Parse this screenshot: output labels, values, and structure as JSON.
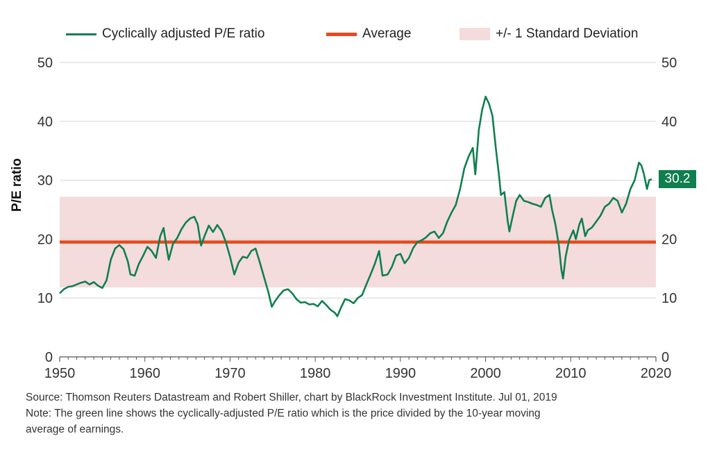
{
  "colors": {
    "cape_line": "#0f7f4f",
    "average": "#e8481c",
    "band": "#f4dcdc",
    "badge": "#0f7f4f",
    "gridline": "#d6d6d6",
    "axis": "#555555"
  },
  "legend": {
    "cape_label": "Cyclically adjusted P/E ratio",
    "average_label": "Average",
    "band_label": "+/- 1 Standard Deviation"
  },
  "ylabel": "P/E ratio",
  "badge_value": "30.2",
  "source_note": "Source: Thomson Reuters Datastream and Robert Shiller, chart by BlackRock Investment Institute. Jul 01, 2019",
  "note_line1": "Note: The green line shows the cyclically-adjusted P/E ratio which is the price divided by the 10-year moving",
  "note_line2": "average of earnings.",
  "chart_data": {
    "type": "line",
    "xlim": [
      1950,
      2020
    ],
    "ylim": [
      0,
      50
    ],
    "x_ticks": [
      "1950",
      "1960",
      "1970",
      "1980",
      "1990",
      "2000",
      "2010",
      "2020"
    ],
    "y_ticks_left": [
      "0",
      "10",
      "20",
      "30",
      "40",
      "50"
    ],
    "y_ticks_right": [
      "0",
      "10",
      "20",
      "30",
      "40",
      "50"
    ],
    "grid": true,
    "legend_position": "top",
    "average": 19.5,
    "std_band": [
      11.8,
      27.2
    ],
    "last_value": 30.2,
    "series": [
      {
        "name": "Cyclically adjusted P/E ratio",
        "points": [
          [
            1950.0,
            10.8
          ],
          [
            1950.5,
            11.5
          ],
          [
            1951.0,
            11.9
          ],
          [
            1951.5,
            12.0
          ],
          [
            1952.0,
            12.3
          ],
          [
            1952.5,
            12.6
          ],
          [
            1953.0,
            12.8
          ],
          [
            1953.5,
            12.3
          ],
          [
            1954.0,
            12.7
          ],
          [
            1954.5,
            12.1
          ],
          [
            1955.0,
            11.7
          ],
          [
            1955.5,
            13.0
          ],
          [
            1956.0,
            16.5
          ],
          [
            1956.5,
            18.4
          ],
          [
            1957.0,
            19.0
          ],
          [
            1957.5,
            18.3
          ],
          [
            1958.0,
            16.2
          ],
          [
            1958.3,
            14.0
          ],
          [
            1958.8,
            13.8
          ],
          [
            1959.3,
            15.8
          ],
          [
            1959.8,
            17.2
          ],
          [
            1960.3,
            18.7
          ],
          [
            1960.8,
            18.0
          ],
          [
            1961.3,
            16.8
          ],
          [
            1961.8,
            20.5
          ],
          [
            1962.2,
            21.9
          ],
          [
            1962.5,
            19.0
          ],
          [
            1962.8,
            16.5
          ],
          [
            1963.3,
            19.2
          ],
          [
            1963.8,
            20.2
          ],
          [
            1964.3,
            21.7
          ],
          [
            1964.8,
            22.8
          ],
          [
            1965.3,
            23.5
          ],
          [
            1965.8,
            23.8
          ],
          [
            1966.2,
            22.5
          ],
          [
            1966.6,
            18.9
          ],
          [
            1967.0,
            20.5
          ],
          [
            1967.5,
            22.3
          ],
          [
            1968.0,
            21.2
          ],
          [
            1968.5,
            22.4
          ],
          [
            1969.0,
            21.4
          ],
          [
            1969.5,
            19.5
          ],
          [
            1970.0,
            17.0
          ],
          [
            1970.5,
            14.0
          ],
          [
            1971.0,
            16.0
          ],
          [
            1971.5,
            17.0
          ],
          [
            1972.0,
            16.8
          ],
          [
            1972.5,
            18.0
          ],
          [
            1973.0,
            18.4
          ],
          [
            1973.5,
            16.0
          ],
          [
            1974.0,
            13.5
          ],
          [
            1974.5,
            11.0
          ],
          [
            1974.9,
            8.5
          ],
          [
            1975.3,
            9.5
          ],
          [
            1975.8,
            10.5
          ],
          [
            1976.3,
            11.3
          ],
          [
            1976.8,
            11.5
          ],
          [
            1977.3,
            10.8
          ],
          [
            1977.8,
            9.8
          ],
          [
            1978.3,
            9.2
          ],
          [
            1978.8,
            9.3
          ],
          [
            1979.3,
            8.9
          ],
          [
            1979.8,
            9.0
          ],
          [
            1980.3,
            8.6
          ],
          [
            1980.8,
            9.5
          ],
          [
            1981.3,
            8.8
          ],
          [
            1981.8,
            8.0
          ],
          [
            1982.3,
            7.5
          ],
          [
            1982.6,
            6.9
          ],
          [
            1983.0,
            8.3
          ],
          [
            1983.5,
            9.8
          ],
          [
            1984.0,
            9.6
          ],
          [
            1984.5,
            9.1
          ],
          [
            1985.0,
            10.0
          ],
          [
            1985.5,
            10.5
          ],
          [
            1986.0,
            12.3
          ],
          [
            1986.5,
            14.0
          ],
          [
            1987.0,
            15.8
          ],
          [
            1987.5,
            18.0
          ],
          [
            1987.9,
            13.8
          ],
          [
            1988.5,
            14.0
          ],
          [
            1989.0,
            15.3
          ],
          [
            1989.5,
            17.2
          ],
          [
            1990.0,
            17.5
          ],
          [
            1990.5,
            15.9
          ],
          [
            1991.0,
            16.8
          ],
          [
            1991.5,
            18.5
          ],
          [
            1992.0,
            19.5
          ],
          [
            1992.5,
            19.8
          ],
          [
            1993.0,
            20.3
          ],
          [
            1993.5,
            21.0
          ],
          [
            1994.0,
            21.3
          ],
          [
            1994.5,
            20.2
          ],
          [
            1995.0,
            21.0
          ],
          [
            1995.5,
            23.0
          ],
          [
            1996.0,
            24.5
          ],
          [
            1996.5,
            25.8
          ],
          [
            1997.0,
            28.5
          ],
          [
            1997.5,
            32.0
          ],
          [
            1998.0,
            34.0
          ],
          [
            1998.5,
            35.5
          ],
          [
            1998.8,
            31.0
          ],
          [
            1999.2,
            38.5
          ],
          [
            1999.6,
            42.0
          ],
          [
            2000.0,
            44.2
          ],
          [
            2000.4,
            43.0
          ],
          [
            2000.8,
            41.0
          ],
          [
            2001.2,
            35.5
          ],
          [
            2001.6,
            30.5
          ],
          [
            2001.8,
            27.5
          ],
          [
            2002.2,
            28.0
          ],
          [
            2002.6,
            23.0
          ],
          [
            2002.8,
            21.3
          ],
          [
            2003.2,
            24.0
          ],
          [
            2003.6,
            26.5
          ],
          [
            2004.0,
            27.5
          ],
          [
            2004.5,
            26.5
          ],
          [
            2005.0,
            26.3
          ],
          [
            2005.5,
            26.0
          ],
          [
            2006.0,
            25.8
          ],
          [
            2006.5,
            25.5
          ],
          [
            2007.0,
            27.0
          ],
          [
            2007.5,
            27.5
          ],
          [
            2007.8,
            25.0
          ],
          [
            2008.2,
            22.5
          ],
          [
            2008.6,
            19.0
          ],
          [
            2008.9,
            14.8
          ],
          [
            2009.1,
            13.3
          ],
          [
            2009.4,
            17.0
          ],
          [
            2009.8,
            19.8
          ],
          [
            2010.3,
            21.5
          ],
          [
            2010.6,
            20.0
          ],
          [
            2011.0,
            22.5
          ],
          [
            2011.3,
            23.5
          ],
          [
            2011.7,
            20.5
          ],
          [
            2012.0,
            21.5
          ],
          [
            2012.5,
            22.0
          ],
          [
            2013.0,
            23.0
          ],
          [
            2013.5,
            24.0
          ],
          [
            2014.0,
            25.5
          ],
          [
            2014.5,
            26.0
          ],
          [
            2015.0,
            27.0
          ],
          [
            2015.5,
            26.5
          ],
          [
            2016.0,
            24.5
          ],
          [
            2016.5,
            26.0
          ],
          [
            2017.0,
            28.5
          ],
          [
            2017.5,
            30.0
          ],
          [
            2018.0,
            33.0
          ],
          [
            2018.3,
            32.5
          ],
          [
            2018.6,
            31.0
          ],
          [
            2018.95,
            28.5
          ],
          [
            2019.2,
            30.0
          ],
          [
            2019.5,
            30.2
          ]
        ]
      }
    ]
  }
}
